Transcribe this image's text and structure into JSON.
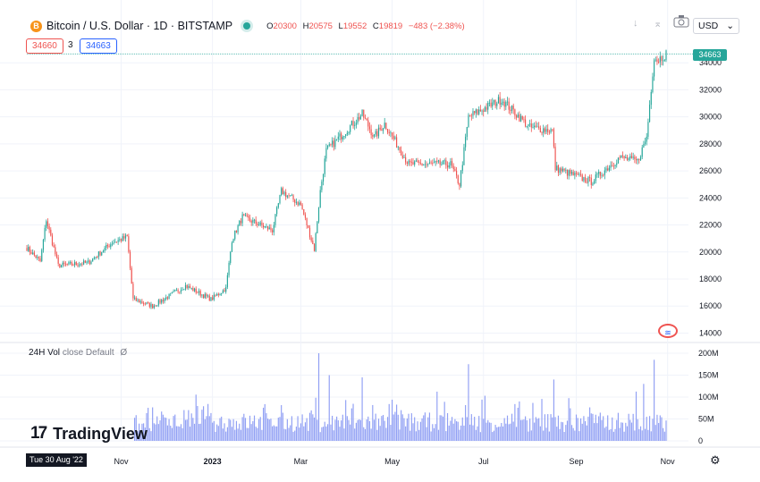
{
  "header": {
    "coin_glyph": "B",
    "symbol": "Bitcoin / U.S. Dollar · 1D · BITSTAMP",
    "open_key": "O",
    "open": "20300",
    "high_key": "H",
    "high": "20575",
    "low_key": "L",
    "low": "19552",
    "close_key": "C",
    "close": "19819",
    "change": "−483 (−2.38%)",
    "bid": "34660",
    "spread": "3",
    "ask": "34663"
  },
  "toolbar": {
    "down_icon": "↓",
    "expand_icon": "⌅",
    "screenshot_icon": "camera",
    "currency": "USD",
    "currency_chevron": "⌄"
  },
  "last_price_tag": "34663",
  "volume_label": {
    "title": "24H Vol",
    "rest": "close Default",
    "null": "Ø"
  },
  "brand": {
    "mark": "17",
    "name": "TradingView"
  },
  "crosshair_date": "Tue 30 Aug '22",
  "settings_icon": "⚙",
  "colors": {
    "up": "#26a69a",
    "down": "#ef5350",
    "volume": "#7e8ff2",
    "grid": "#f0f3fa"
  },
  "chart_data": [
    {
      "type": "candlestick",
      "x_ticks": [
        "Nov",
        "2023",
        "Mar",
        "May",
        "Jul",
        "Sep",
        "Nov"
      ],
      "y_ticks": [
        14000,
        16000,
        18000,
        20000,
        22000,
        24000,
        26000,
        28000,
        30000,
        32000,
        34000
      ],
      "ylim": [
        13500,
        35800
      ],
      "x_start": "2022-08-30",
      "x_end": "2023-10-31",
      "anchors": [
        [
          "2022-08-30",
          20300
        ],
        [
          "2022-09-08",
          19300
        ],
        [
          "2022-09-12",
          22400
        ],
        [
          "2022-09-20",
          19000
        ],
        [
          "2022-10-10",
          19200
        ],
        [
          "2022-10-26",
          20700
        ],
        [
          "2022-11-05",
          21100
        ],
        [
          "2022-11-09",
          16500
        ],
        [
          "2022-11-22",
          16000
        ],
        [
          "2022-12-14",
          17500
        ],
        [
          "2022-12-31",
          16500
        ],
        [
          "2023-01-10",
          17300
        ],
        [
          "2023-01-14",
          20900
        ],
        [
          "2023-01-21",
          22600
        ],
        [
          "2023-02-10",
          21600
        ],
        [
          "2023-02-16",
          24500
        ],
        [
          "2023-03-01",
          23500
        ],
        [
          "2023-03-10",
          20200
        ],
        [
          "2023-03-14",
          24500
        ],
        [
          "2023-03-18",
          27500
        ],
        [
          "2023-04-11",
          30200
        ],
        [
          "2023-04-19",
          28500
        ],
        [
          "2023-04-26",
          29500
        ],
        [
          "2023-05-12",
          26500
        ],
        [
          "2023-06-09",
          26500
        ],
        [
          "2023-06-15",
          25000
        ],
        [
          "2023-06-21",
          30000
        ],
        [
          "2023-07-13",
          31300
        ],
        [
          "2023-08-01",
          29200
        ],
        [
          "2023-08-16",
          29000
        ],
        [
          "2023-08-18",
          26200
        ],
        [
          "2023-09-11",
          25200
        ],
        [
          "2023-09-30",
          27000
        ],
        [
          "2023-10-12",
          26700
        ],
        [
          "2023-10-18",
          28500
        ],
        [
          "2023-10-23",
          34500
        ],
        [
          "2023-10-25",
          34200
        ],
        [
          "2023-10-31",
          34660
        ]
      ]
    },
    {
      "type": "bar",
      "name": "24H Vol",
      "y_ticks": [
        "200M",
        "150M",
        "100M",
        "50M",
        "0"
      ],
      "ylim": [
        0,
        200
      ],
      "unit": "M"
    }
  ]
}
